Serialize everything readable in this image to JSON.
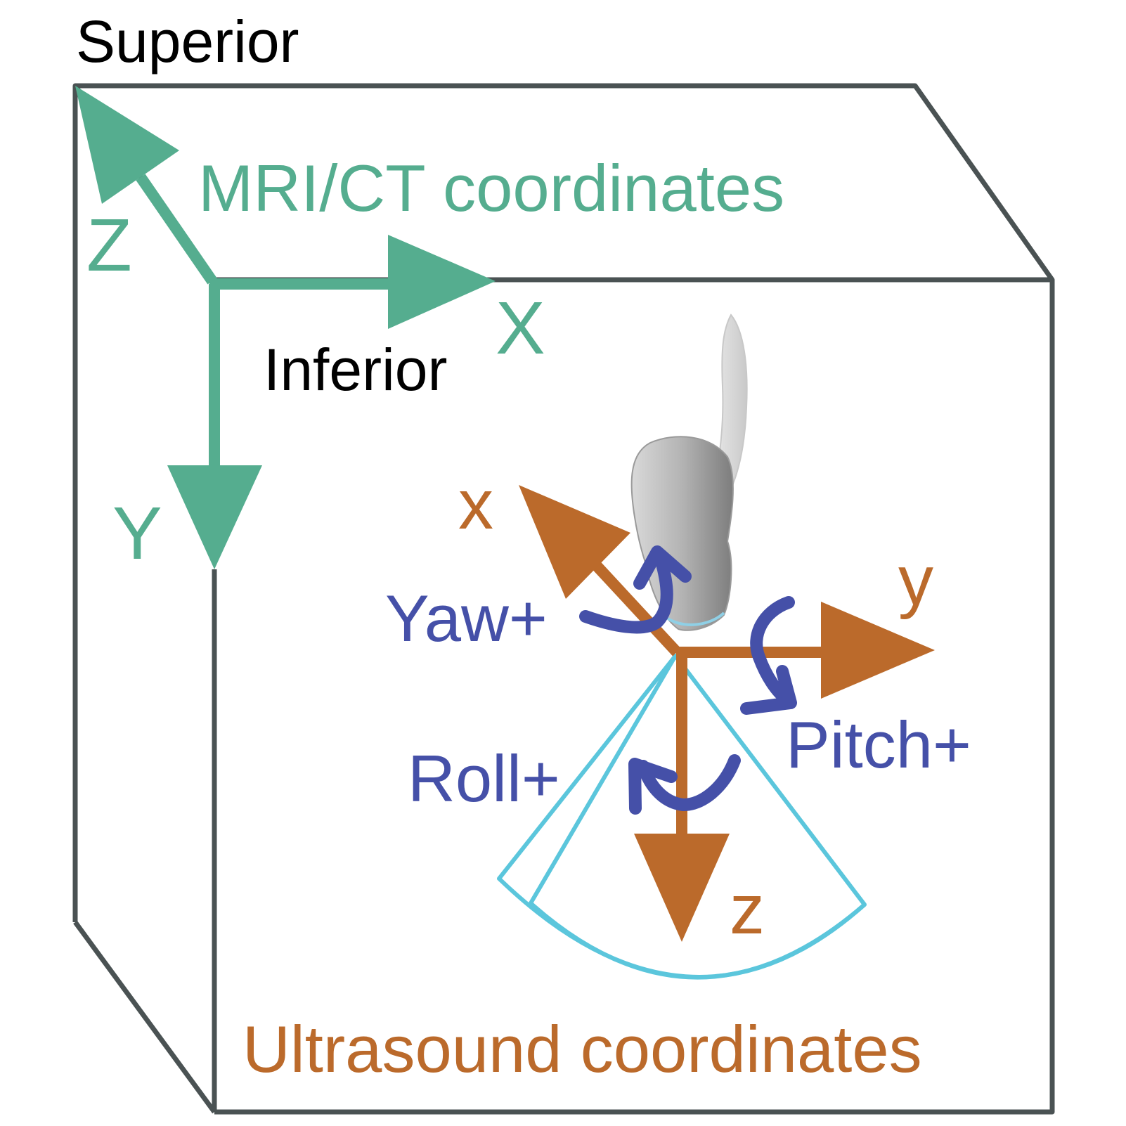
{
  "labels": {
    "superior": "Superior",
    "inferior": "Inferior",
    "mri_ct": "MRI/CT coordinates",
    "ultrasound": "Ultrasound coordinates",
    "axis_X": "X",
    "axis_Y": "Y",
    "axis_Z": "Z",
    "axis_x": "x",
    "axis_y": "y",
    "axis_z": "z",
    "yaw": "Yaw+",
    "pitch": "Pitch+",
    "roll": "Roll+"
  },
  "colors": {
    "box": "#4a5253",
    "mri_axes": "#55ad8f",
    "us_axes": "#bb6a2b",
    "rotation": "#4550a8",
    "fan": "#5bc6dc",
    "text": "#000000"
  },
  "icons": {
    "probe": "ultrasound-probe-icon"
  }
}
